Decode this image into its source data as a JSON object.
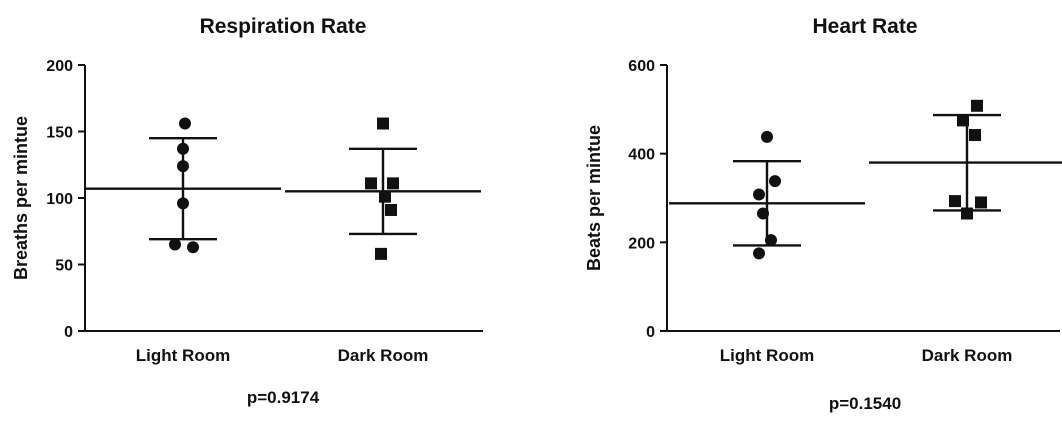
{
  "chart_data": [
    {
      "type": "scatter",
      "title": "Respiration Rate",
      "ylabel": "Breaths per mintue",
      "xlabel": "",
      "categories": [
        "Light Room",
        "Dark Room"
      ],
      "ylim": [
        0,
        200
      ],
      "yticks": [
        0,
        50,
        100,
        150,
        200
      ],
      "series": [
        {
          "category": "Light Room",
          "marker": "circle",
          "values": [
            156,
            137,
            124,
            96,
            65,
            63
          ],
          "mean": 107,
          "error_upper": 145,
          "error_lower": 69
        },
        {
          "category": "Dark Room",
          "marker": "square",
          "values": [
            156,
            111,
            111,
            101,
            91,
            58
          ],
          "mean": 105,
          "error_upper": 137,
          "error_lower": 73
        }
      ],
      "annotation": "p=0.9174",
      "grid": false
    },
    {
      "type": "scatter",
      "title": "Heart Rate",
      "ylabel": "Beats per mintue",
      "xlabel": "",
      "categories": [
        "Light Room",
        "Dark Room"
      ],
      "ylim": [
        0,
        600
      ],
      "yticks": [
        0,
        200,
        400,
        600
      ],
      "series": [
        {
          "category": "Light Room",
          "marker": "circle",
          "values": [
            438,
            338,
            308,
            265,
            205,
            175
          ],
          "mean": 288,
          "error_upper": 383,
          "error_lower": 193
        },
        {
          "category": "Dark Room",
          "marker": "square",
          "values": [
            508,
            475,
            442,
            293,
            290,
            265
          ],
          "mean": 380,
          "error_upper": 487,
          "error_lower": 272
        }
      ],
      "annotation": "p=0.1540",
      "grid": false
    }
  ]
}
